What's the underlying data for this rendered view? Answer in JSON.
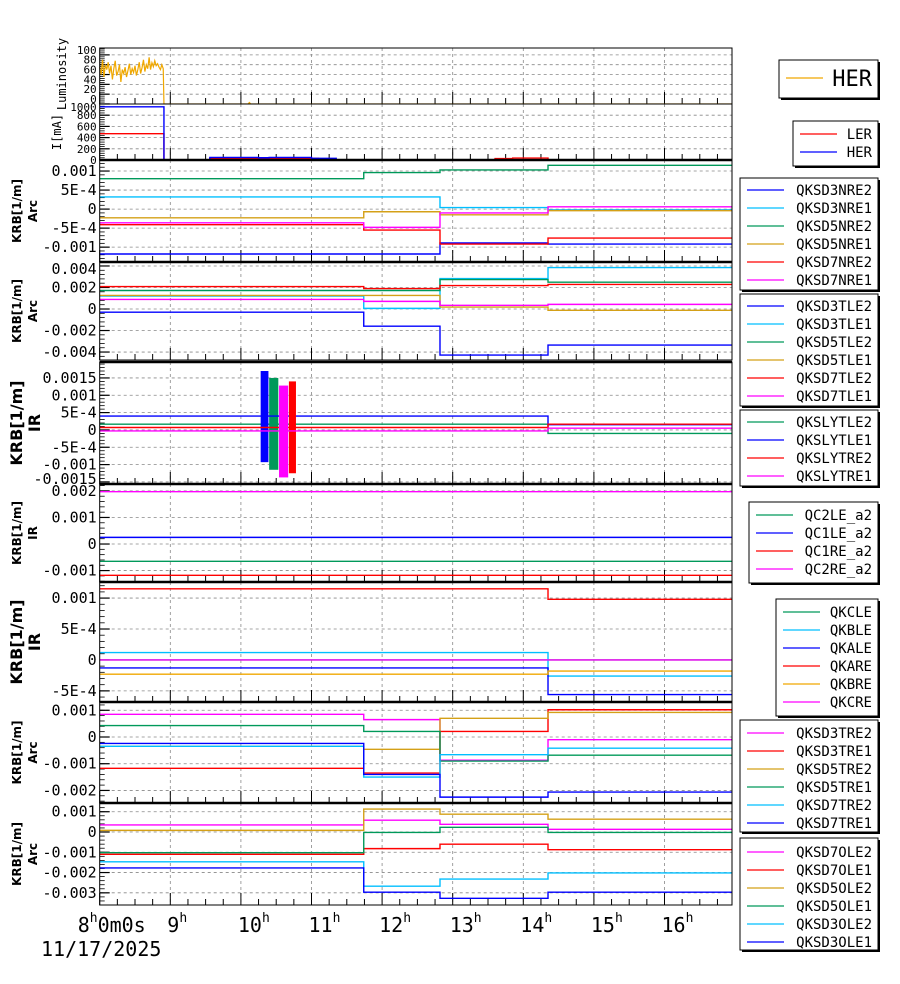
{
  "chart_data": [
    {
      "type": "line",
      "ylabel": "Luminosity",
      "ylim": [
        0,
        114
      ],
      "xlim": [
        8,
        16.96
      ],
      "grid": true,
      "yticks": [
        {
          "v": 100,
          "label": "100"
        },
        {
          "v": 80,
          "label": "80"
        },
        {
          "v": 60,
          "label": "60"
        },
        {
          "v": 40,
          "label": "40"
        },
        {
          "v": 20,
          "label": "20"
        },
        {
          "v": 0,
          "label": "0"
        }
      ],
      "legend": "top-right",
      "series": [
        {
          "name": "HER",
          "color": "#f0a800",
          "mode": "line",
          "x0": 8,
          "dx": 0.02,
          "y": [
            75,
            60,
            90,
            55,
            80,
            70,
            85,
            62,
            78,
            50,
            72,
            88,
            58,
            66,
            80,
            45,
            70,
            62,
            75,
            55,
            68,
            82,
            60,
            72,
            64,
            78,
            58,
            70,
            85,
            62,
            74,
            90,
            66,
            80,
            72,
            95,
            70,
            84,
            76,
            88,
            78,
            82,
            75,
            70,
            80,
            72
          ],
          "tail": [
            [
              8.91,
              0
            ],
            [
              10.1,
              0
            ],
            [
              10.12,
              3
            ],
            [
              10.14,
              0
            ],
            [
              16.96,
              0
            ]
          ]
        }
      ]
    },
    {
      "type": "line",
      "ylabel": "I[mA]",
      "ylim": [
        0,
        1000
      ],
      "xlim": [
        8,
        16.96
      ],
      "grid": true,
      "yticks": [
        {
          "v": 1000,
          "label": "1000"
        },
        {
          "v": 800,
          "label": "800"
        },
        {
          "v": 600,
          "label": "600"
        },
        {
          "v": 400,
          "label": "400"
        },
        {
          "v": 200,
          "label": "200"
        },
        {
          "v": 0,
          "label": "0"
        }
      ],
      "legend": "top-right",
      "series": [
        {
          "name": "LER",
          "color": "#ff0000",
          "x": [
            8,
            8.91,
            9.56,
            9.9,
            10.3,
            11.1,
            11.2,
            13.6,
            13.85,
            14.35
          ],
          "y": [
            470,
            0,
            30,
            25,
            30,
            20,
            0,
            25,
            35,
            0
          ]
        },
        {
          "name": "HER",
          "color": "#0000ff",
          "x": [
            8,
            8.91,
            9.56,
            10.25,
            10.4,
            11.0,
            11.35
          ],
          "y": [
            950,
            0,
            45,
            40,
            45,
            30,
            0
          ]
        }
      ]
    },
    {
      "type": "line",
      "ylabel": "KRB[1/m]",
      "ylabel2": "Arc",
      "ylim": [
        -0.00139,
        0.00129
      ],
      "xlim": [
        8,
        16.96
      ],
      "grid": true,
      "yticks": [
        {
          "v": 0.001,
          "label": "0.001"
        },
        {
          "v": 0.0005,
          "label": "5E-4"
        },
        {
          "v": 0,
          "label": "0"
        },
        {
          "v": -0.0005,
          "label": "-5E-4"
        },
        {
          "v": -0.001,
          "label": "-0.001"
        }
      ],
      "legend": "right",
      "series": [
        {
          "name": "QKSD3NRE2",
          "color": "#0000ff",
          "x": [
            8,
            11.74,
            12.82,
            14.35
          ],
          "y": [
            -0.00118,
            -0.00118,
            -0.00089,
            -0.00092
          ]
        },
        {
          "name": "QKSD3NRE1",
          "color": "#00bfff",
          "x": [
            8,
            11.74,
            12.82,
            14.35
          ],
          "y": [
            0.00032,
            0.00032,
            4e-05,
            -2e-05
          ]
        },
        {
          "name": "QKSD5NRE2",
          "color": "#00995a",
          "x": [
            8,
            11.74,
            12.82,
            14.35
          ],
          "y": [
            0.0008,
            0.00096,
            0.00103,
            0.00115
          ]
        },
        {
          "name": "QKSD5NRE1",
          "color": "#d4a017",
          "x": [
            8,
            11.74,
            12.82,
            14.35
          ],
          "y": [
            -0.00023,
            -7e-05,
            -0.00015,
            -4e-05
          ]
        },
        {
          "name": "QKSD7NRE2",
          "color": "#ff0000",
          "x": [
            8,
            11.74,
            12.82,
            14.35
          ],
          "y": [
            -0.00041,
            -0.00055,
            -0.00092,
            -0.00076
          ]
        },
        {
          "name": "QKSD7NRE1",
          "color": "#ff00ff",
          "x": [
            8,
            11.74,
            12.82,
            14.35
          ],
          "y": [
            -0.00036,
            -0.00048,
            -0.0001,
            6e-05
          ]
        }
      ]
    },
    {
      "type": "line",
      "ylabel": "KRB[1/m]",
      "ylabel2": "Arc",
      "ylim": [
        -0.00474,
        0.00437
      ],
      "xlim": [
        8,
        16.96
      ],
      "grid": true,
      "yticks": [
        {
          "v": 0.004,
          "label": "0.004"
        },
        {
          "v": 0.002,
          "label": "0.002"
        },
        {
          "v": 0,
          "label": "0"
        },
        {
          "v": -0.002,
          "label": "-0.002"
        },
        {
          "v": -0.004,
          "label": "-0.004"
        }
      ],
      "legend": "right",
      "series": [
        {
          "name": "QKSD3TLE2",
          "color": "#0000ff",
          "x": [
            8,
            11.74,
            12.82,
            14.35
          ],
          "y": [
            -0.0003,
            -0.0016,
            -0.00428,
            -0.00335
          ]
        },
        {
          "name": "QKSD3TLE1",
          "color": "#00bfff",
          "x": [
            8,
            11.74,
            12.82,
            14.35
          ],
          "y": [
            0.0012,
            6e-05,
            0.00283,
            0.00385
          ]
        },
        {
          "name": "QKSD5TLE2",
          "color": "#00995a",
          "x": [
            8,
            11.74,
            12.82,
            14.35
          ],
          "y": [
            0.00172,
            0.00172,
            0.00274,
            0.00249
          ]
        },
        {
          "name": "QKSD5TLE1",
          "color": "#d4a017",
          "x": [
            8,
            11.74,
            12.82,
            14.35
          ],
          "y": [
            0.00126,
            0.00126,
            0.00018,
            -0.00012
          ]
        },
        {
          "name": "QKSD7TLE2",
          "color": "#ff0000",
          "x": [
            8,
            11.74,
            12.82,
            14.35
          ],
          "y": [
            0.00209,
            0.0019,
            0.00218,
            0.00228
          ]
        },
        {
          "name": "QKSD7TLE1",
          "color": "#ff00ff",
          "x": [
            8,
            11.74,
            12.82,
            14.35
          ],
          "y": [
            0.00089,
            0.00071,
            0.00034,
            0.00043
          ]
        }
      ]
    },
    {
      "type": "line",
      "ylabel": "KRB[1/m]",
      "ylabel2": "IR",
      "ylim": [
        -0.00156,
        0.00196
      ],
      "xlim": [
        8,
        16.96
      ],
      "grid": true,
      "yticks": [
        {
          "v": 0.0015,
          "label": "0.0015"
        },
        {
          "v": 0.001,
          "label": "0.001"
        },
        {
          "v": 0.0005,
          "label": "5E-4"
        },
        {
          "v": 0,
          "label": "0"
        },
        {
          "v": -0.0005,
          "label": "-5E-4"
        },
        {
          "v": -0.001,
          "label": "-0.001"
        },
        {
          "v": -0.0015,
          "label": "-0.0015"
        }
      ],
      "legend": "right",
      "series": [
        {
          "name": "QKSLYTLE2",
          "color": "#00995a",
          "x": [
            8,
            14.35
          ],
          "y": [
            0.000165,
            -0.0001
          ],
          "spike": {
            "t": [
              10.4,
              10.53
            ],
            "range": [
              -0.00115,
              0.0015
            ]
          }
        },
        {
          "name": "QKSLYTLE1",
          "color": "#0000ff",
          "x": [
            8,
            14.35
          ],
          "y": [
            0.0004,
            0.00015
          ],
          "spike": {
            "t": [
              10.28,
              10.39
            ],
            "range": [
              -0.00093,
              0.0017
            ]
          }
        },
        {
          "name": "QKSLYTRE2",
          "color": "#ff0000",
          "x": [
            8,
            14.35
          ],
          "y": [
            7e-05,
            0.000165
          ],
          "spike": {
            "t": [
              10.68,
              10.78
            ],
            "range": [
              -0.00125,
              0.0014
            ]
          }
        },
        {
          "name": "QKSLYTRE1",
          "color": "#ff00ff",
          "x": [
            8,
            14.35
          ],
          "y": [
            -3e-05,
            5e-05
          ],
          "spike": {
            "t": [
              10.54,
              10.67
            ],
            "range": [
              -0.00137,
              0.00128
            ]
          }
        }
      ]
    },
    {
      "type": "line",
      "ylabel": "KRB[1/m]",
      "ylabel2": "IR",
      "ylim": [
        -0.00143,
        0.00226
      ],
      "xlim": [
        8,
        16.96
      ],
      "grid": true,
      "yticks": [
        {
          "v": 0.002,
          "label": "0.002"
        },
        {
          "v": 0.001,
          "label": "0.001"
        },
        {
          "v": 0,
          "label": "0"
        },
        {
          "v": -0.001,
          "label": "-0.001"
        }
      ],
      "legend": "right",
      "series": [
        {
          "name": "QC2LE_a2",
          "color": "#00995a",
          "x": [
            8
          ],
          "y": [
            -0.00065
          ]
        },
        {
          "name": "QC1LE_a2",
          "color": "#0000ff",
          "x": [
            8
          ],
          "y": [
            0.00025
          ]
        },
        {
          "name": "QC1RE_a2",
          "color": "#ff0000",
          "x": [
            8
          ],
          "y": [
            -0.00118
          ]
        },
        {
          "name": "QC2RE_a2",
          "color": "#ff00ff",
          "x": [
            8
          ],
          "y": [
            0.00197
          ]
        }
      ]
    },
    {
      "type": "line",
      "ylabel": "KRB[1/m]",
      "ylabel2": "IR",
      "ylim": [
        -0.00068,
        0.00126
      ],
      "xlim": [
        8,
        16.96
      ],
      "grid": true,
      "yticks": [
        {
          "v": 0.001,
          "label": "0.001"
        },
        {
          "v": 0.0005,
          "label": "5E-4"
        },
        {
          "v": 0,
          "label": "0"
        },
        {
          "v": -0.0005,
          "label": "-5E-4"
        }
      ],
      "legend": "right",
      "series": [
        {
          "name": "QKCLE",
          "color": "#00995a",
          "x": [
            8
          ],
          "y": [
            0
          ]
        },
        {
          "name": "QKBLE",
          "color": "#00bfff",
          "x": [
            8,
            14.35
          ],
          "y": [
            0.00012,
            -0.00026
          ]
        },
        {
          "name": "QKALE",
          "color": "#0000ff",
          "x": [
            8,
            14.35
          ],
          "y": [
            -0.00013,
            -0.00056
          ]
        },
        {
          "name": "QKARE",
          "color": "#ff0000",
          "x": [
            8,
            14.35
          ],
          "y": [
            0.00115,
            0.00098
          ]
        },
        {
          "name": "QKBRE",
          "color": "#f0a800",
          "x": [
            8,
            14.35
          ],
          "y": [
            -0.00023,
            -0.00018
          ]
        },
        {
          "name": "QKCRE",
          "color": "#ff00ff",
          "x": [
            8
          ],
          "y": [
            0
          ]
        }
      ]
    },
    {
      "type": "line",
      "ylabel": "KRB[1/m]",
      "ylabel2": "Arc",
      "ylim": [
        -0.00247,
        0.00131
      ],
      "xlim": [
        8,
        16.96
      ],
      "grid": true,
      "yticks": [
        {
          "v": 0.001,
          "label": "0.001"
        },
        {
          "v": 0,
          "label": "0"
        },
        {
          "v": -0.001,
          "label": "-0.001"
        },
        {
          "v": -0.002,
          "label": "-0.002"
        }
      ],
      "legend": "right",
      "series": [
        {
          "name": "QKSD3TRE2",
          "color": "#ff00ff",
          "x": [
            8,
            11.74,
            12.82,
            14.35
          ],
          "y": [
            0.00085,
            0.00065,
            -0.00087,
            -0.0001
          ]
        },
        {
          "name": "QKSD3TRE1",
          "color": "#ff0000",
          "x": [
            8,
            11.74,
            12.82,
            14.35
          ],
          "y": [
            -0.00117,
            -0.00135,
            0.00021,
            0.00102
          ]
        },
        {
          "name": "QKSD5TRE2",
          "color": "#d4a017",
          "x": [
            8,
            11.74,
            12.82,
            14.35
          ],
          "y": [
            -0.00035,
            -0.00046,
            0.0007,
            0.00092
          ]
        },
        {
          "name": "QKSD5TRE1",
          "color": "#00995a",
          "x": [
            8,
            11.74,
            12.82,
            14.35
          ],
          "y": [
            0.00043,
            0.00021,
            -0.0009,
            -0.00068
          ]
        },
        {
          "name": "QKSD7TRE2",
          "color": "#00bfff",
          "x": [
            8,
            11.74,
            12.82,
            14.35
          ],
          "y": [
            -0.00035,
            -0.0015,
            -0.00066,
            -0.00042
          ]
        },
        {
          "name": "QKSD7TRE1",
          "color": "#0000ff",
          "x": [
            8,
            11.74,
            12.82,
            14.35
          ],
          "y": [
            -0.00024,
            -0.0014,
            -0.00225,
            -0.00206
          ]
        }
      ]
    },
    {
      "type": "line",
      "ylabel": "KRB[1/m]",
      "ylabel2": "Arc",
      "ylim": [
        -0.0036,
        0.00143
      ],
      "xlim": [
        8,
        16.96
      ],
      "grid": true,
      "yticks": [
        {
          "v": 0.001,
          "label": "0.001"
        },
        {
          "v": 0,
          "label": "0"
        },
        {
          "v": -0.001,
          "label": "-0.001"
        },
        {
          "v": -0.002,
          "label": "-0.002"
        },
        {
          "v": -0.003,
          "label": "-0.003"
        }
      ],
      "legend": "right",
      "xticks": [
        {
          "v": 8,
          "label": "8",
          "sup": "h",
          "extra": "0m0s"
        },
        {
          "v": 9,
          "label": "9",
          "sup": "h"
        },
        {
          "v": 10,
          "label": "10",
          "sup": "h"
        },
        {
          "v": 11,
          "label": "11",
          "sup": "h"
        },
        {
          "v": 12,
          "label": "12",
          "sup": "h"
        },
        {
          "v": 13,
          "label": "13",
          "sup": "h"
        },
        {
          "v": 14,
          "label": "14",
          "sup": "h"
        },
        {
          "v": 15,
          "label": "15",
          "sup": "h"
        },
        {
          "v": 16,
          "label": "16",
          "sup": "h"
        }
      ],
      "date": "11/17/2025",
      "series": [
        {
          "name": "QKSD7OLE2",
          "color": "#ff00ff",
          "x": [
            8,
            11.74,
            12.82,
            14.35
          ],
          "y": [
            0.00035,
            0.00058,
            0.00038,
            0.00013
          ]
        },
        {
          "name": "QKSD7OLE1",
          "color": "#ff0000",
          "x": [
            8,
            11.74,
            12.82,
            14.35
          ],
          "y": [
            -0.0011,
            -0.00082,
            -0.0006,
            -0.00087
          ]
        },
        {
          "name": "QKSD5OLE2",
          "color": "#d4a017",
          "x": [
            8,
            11.74,
            12.82,
            14.35
          ],
          "y": [
            8e-05,
            0.00113,
            0.00088,
            0.00063
          ]
        },
        {
          "name": "QKSD5OLE1",
          "color": "#00995a",
          "x": [
            8,
            11.74,
            12.82,
            14.35
          ],
          "y": [
            -0.00102,
            -2e-05,
            0.00023,
            -2e-05
          ]
        },
        {
          "name": "QKSD3OLE2",
          "color": "#00bfff",
          "x": [
            8,
            11.74,
            12.82,
            14.35
          ],
          "y": [
            -0.00147,
            -0.00267,
            -0.00232,
            -0.00202
          ]
        },
        {
          "name": "QKSD3OLE1",
          "color": "#0000ff",
          "x": [
            8,
            11.74,
            12.82,
            14.35
          ],
          "y": [
            -0.00177,
            -0.00297,
            -0.00327,
            -0.00297
          ]
        }
      ]
    }
  ]
}
